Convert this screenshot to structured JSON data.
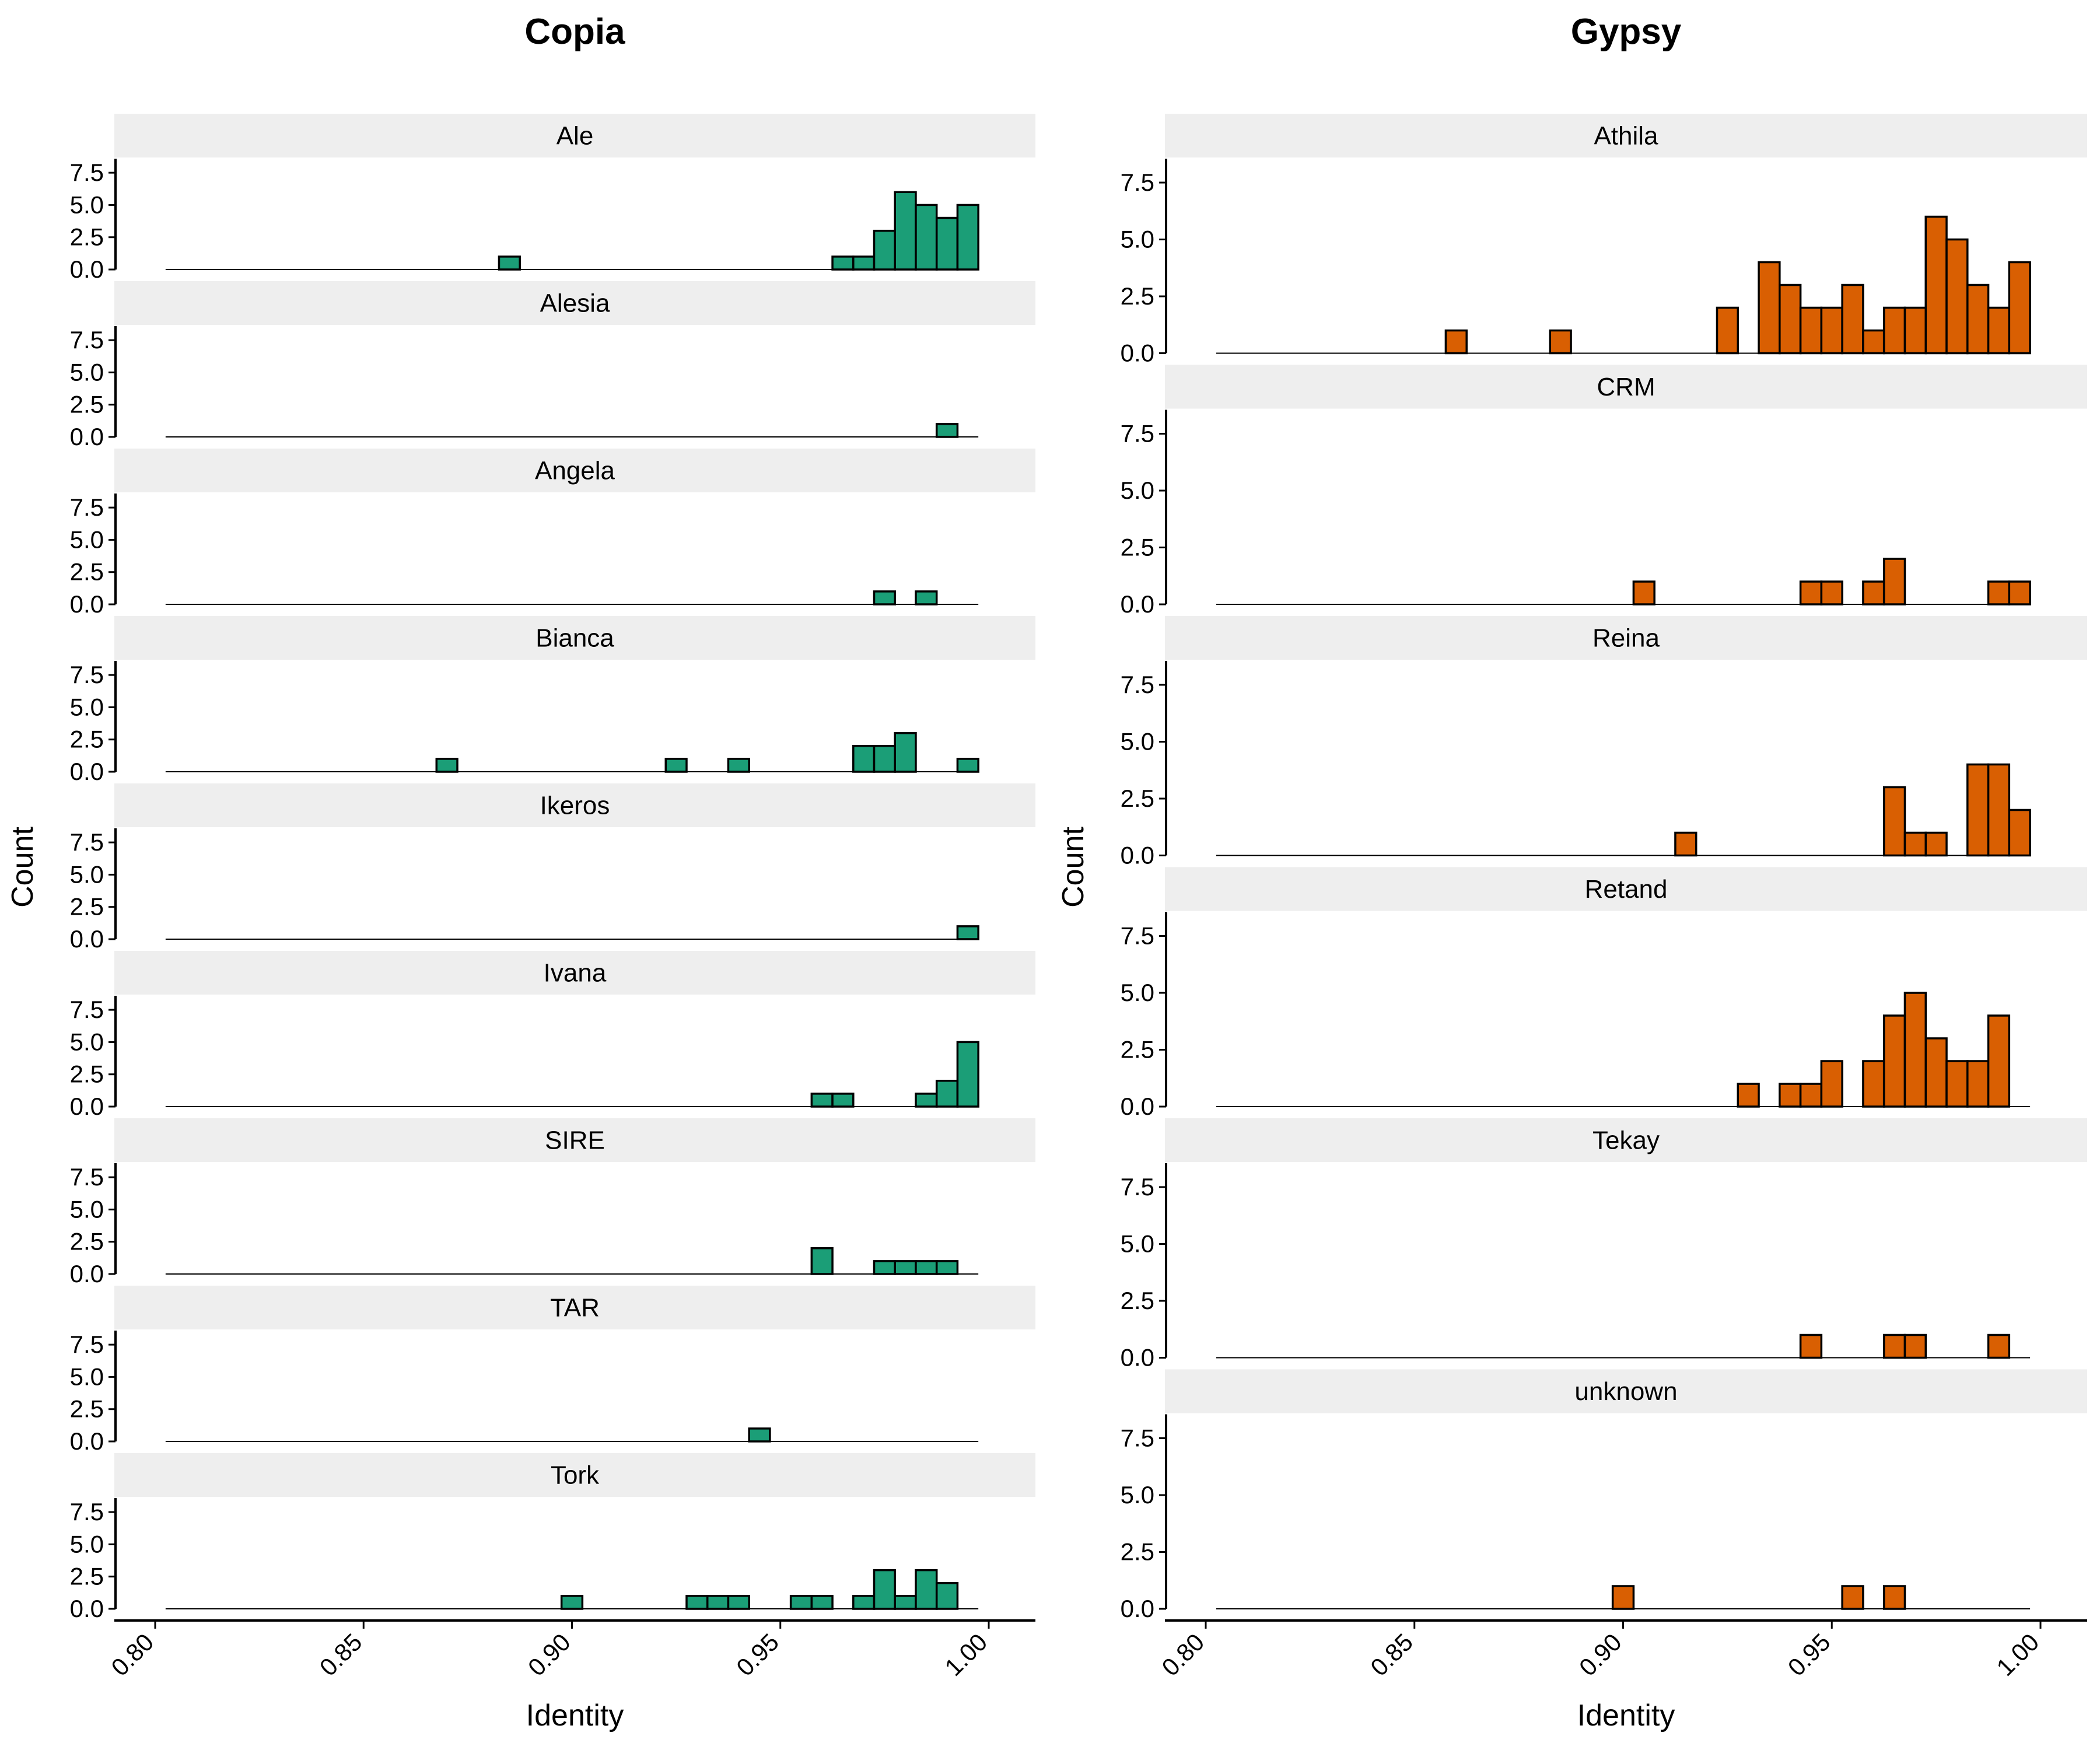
{
  "chart_data": [
    {
      "type": "histogram",
      "title": "Copia",
      "xlabel": "Identity",
      "ylabel": "Count",
      "x_ticks": [
        "0.80",
        "0.85",
        "0.90",
        "0.95",
        "1.00"
      ],
      "y_ticks": [
        "0.0",
        "2.5",
        "5.0",
        "7.5"
      ],
      "xlim": [
        0.8,
        1.0
      ],
      "ylim": [
        0,
        8.5
      ],
      "bin_width": 0.005,
      "bar_color": "#1b9e77",
      "grid": false,
      "facets": [
        {
          "name": "Ale",
          "bins": [
            {
              "x": 0.885,
              "count": 1
            },
            {
              "x": 0.965,
              "count": 1
            },
            {
              "x": 0.97,
              "count": 1
            },
            {
              "x": 0.975,
              "count": 3
            },
            {
              "x": 0.98,
              "count": 6
            },
            {
              "x": 0.985,
              "count": 5
            },
            {
              "x": 0.99,
              "count": 4
            },
            {
              "x": 0.995,
              "count": 5
            }
          ]
        },
        {
          "name": "Alesia",
          "bins": [
            {
              "x": 0.99,
              "count": 1
            }
          ]
        },
        {
          "name": "Angela",
          "bins": [
            {
              "x": 0.975,
              "count": 1
            },
            {
              "x": 0.985,
              "count": 1
            }
          ]
        },
        {
          "name": "Bianca",
          "bins": [
            {
              "x": 0.87,
              "count": 1
            },
            {
              "x": 0.925,
              "count": 1
            },
            {
              "x": 0.94,
              "count": 1
            },
            {
              "x": 0.97,
              "count": 2
            },
            {
              "x": 0.975,
              "count": 2
            },
            {
              "x": 0.98,
              "count": 3
            },
            {
              "x": 0.995,
              "count": 1
            }
          ]
        },
        {
          "name": "Ikeros",
          "bins": [
            {
              "x": 0.995,
              "count": 1
            }
          ]
        },
        {
          "name": "Ivana",
          "bins": [
            {
              "x": 0.96,
              "count": 1
            },
            {
              "x": 0.965,
              "count": 1
            },
            {
              "x": 0.985,
              "count": 1
            },
            {
              "x": 0.99,
              "count": 2
            },
            {
              "x": 0.995,
              "count": 5
            }
          ]
        },
        {
          "name": "SIRE",
          "bins": [
            {
              "x": 0.96,
              "count": 2
            },
            {
              "x": 0.975,
              "count": 1
            },
            {
              "x": 0.98,
              "count": 1
            },
            {
              "x": 0.985,
              "count": 1
            },
            {
              "x": 0.99,
              "count": 1
            }
          ]
        },
        {
          "name": "TAR",
          "bins": [
            {
              "x": 0.945,
              "count": 1
            }
          ]
        },
        {
          "name": "Tork",
          "bins": [
            {
              "x": 0.9,
              "count": 1
            },
            {
              "x": 0.93,
              "count": 1
            },
            {
              "x": 0.935,
              "count": 1
            },
            {
              "x": 0.94,
              "count": 1
            },
            {
              "x": 0.955,
              "count": 1
            },
            {
              "x": 0.96,
              "count": 1
            },
            {
              "x": 0.97,
              "count": 1
            },
            {
              "x": 0.975,
              "count": 3
            },
            {
              "x": 0.98,
              "count": 1
            },
            {
              "x": 0.985,
              "count": 3
            },
            {
              "x": 0.99,
              "count": 2
            }
          ]
        }
      ]
    },
    {
      "type": "histogram",
      "title": "Gypsy",
      "xlabel": "Identity",
      "ylabel": "Count",
      "x_ticks": [
        "0.80",
        "0.85",
        "0.90",
        "0.95",
        "1.00"
      ],
      "y_ticks": [
        "0.0",
        "2.5",
        "5.0",
        "7.5"
      ],
      "xlim": [
        0.8,
        1.0
      ],
      "ylim": [
        0,
        8.5
      ],
      "bin_width": 0.005,
      "bar_color": "#d95f02",
      "grid": false,
      "facets": [
        {
          "name": "Athila",
          "bins": [
            {
              "x": 0.86,
              "count": 1
            },
            {
              "x": 0.885,
              "count": 1
            },
            {
              "x": 0.925,
              "count": 2
            },
            {
              "x": 0.935,
              "count": 4
            },
            {
              "x": 0.94,
              "count": 3
            },
            {
              "x": 0.945,
              "count": 2
            },
            {
              "x": 0.95,
              "count": 2
            },
            {
              "x": 0.955,
              "count": 3
            },
            {
              "x": 0.96,
              "count": 1
            },
            {
              "x": 0.965,
              "count": 2
            },
            {
              "x": 0.97,
              "count": 2
            },
            {
              "x": 0.975,
              "count": 6
            },
            {
              "x": 0.98,
              "count": 5
            },
            {
              "x": 0.985,
              "count": 3
            },
            {
              "x": 0.99,
              "count": 2
            },
            {
              "x": 0.995,
              "count": 4
            }
          ]
        },
        {
          "name": "CRM",
          "bins": [
            {
              "x": 0.905,
              "count": 1
            },
            {
              "x": 0.945,
              "count": 1
            },
            {
              "x": 0.95,
              "count": 1
            },
            {
              "x": 0.96,
              "count": 1
            },
            {
              "x": 0.965,
              "count": 2
            },
            {
              "x": 0.99,
              "count": 1
            },
            {
              "x": 0.995,
              "count": 1
            }
          ]
        },
        {
          "name": "Reina",
          "bins": [
            {
              "x": 0.915,
              "count": 1
            },
            {
              "x": 0.965,
              "count": 3
            },
            {
              "x": 0.97,
              "count": 1
            },
            {
              "x": 0.975,
              "count": 1
            },
            {
              "x": 0.985,
              "count": 4
            },
            {
              "x": 0.99,
              "count": 4
            },
            {
              "x": 0.995,
              "count": 2
            }
          ]
        },
        {
          "name": "Retand",
          "bins": [
            {
              "x": 0.93,
              "count": 1
            },
            {
              "x": 0.94,
              "count": 1
            },
            {
              "x": 0.945,
              "count": 1
            },
            {
              "x": 0.95,
              "count": 2
            },
            {
              "x": 0.96,
              "count": 2
            },
            {
              "x": 0.965,
              "count": 4
            },
            {
              "x": 0.97,
              "count": 5
            },
            {
              "x": 0.975,
              "count": 3
            },
            {
              "x": 0.98,
              "count": 2
            },
            {
              "x": 0.985,
              "count": 2
            },
            {
              "x": 0.99,
              "count": 4
            }
          ]
        },
        {
          "name": "Tekay",
          "bins": [
            {
              "x": 0.945,
              "count": 1
            },
            {
              "x": 0.965,
              "count": 1
            },
            {
              "x": 0.97,
              "count": 1
            },
            {
              "x": 0.99,
              "count": 1
            }
          ]
        },
        {
          "name": "unknown",
          "bins": [
            {
              "x": 0.9,
              "count": 1
            },
            {
              "x": 0.955,
              "count": 1
            },
            {
              "x": 0.965,
              "count": 1
            }
          ]
        }
      ]
    }
  ]
}
